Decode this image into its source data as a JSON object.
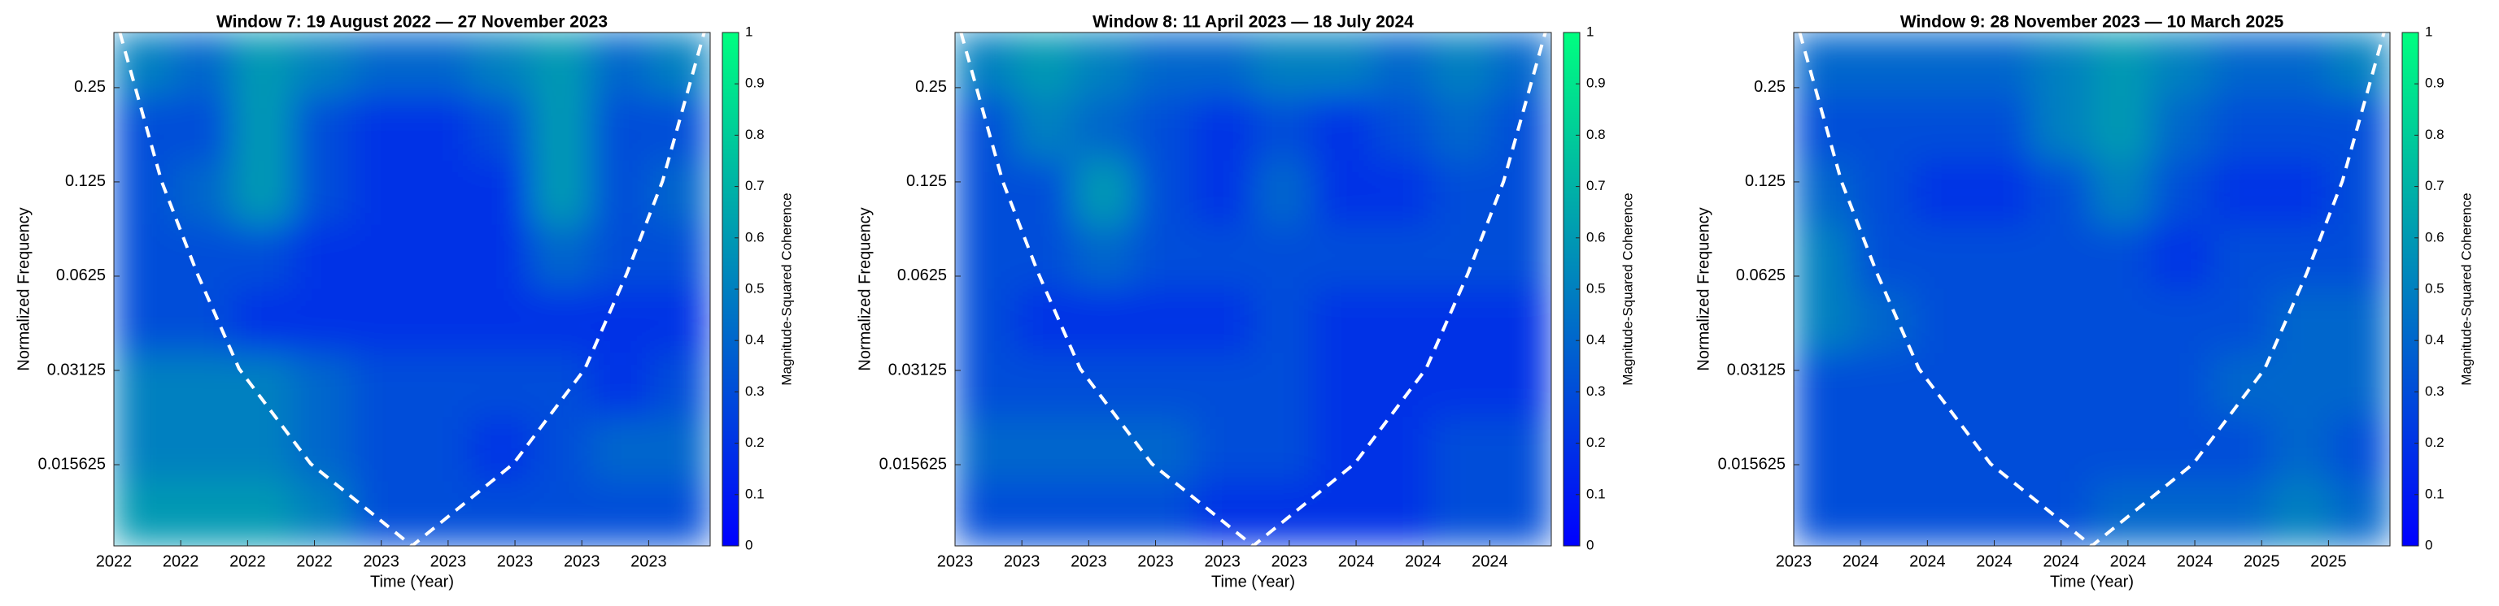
{
  "chart_data": [
    {
      "type": "heatmap",
      "title": "Window 7: 19 August 2022 — 27 November 2023",
      "xlabel": "Time (Year)",
      "ylabel": "Normalized Frequency",
      "ylog2": true,
      "ylim": [
        0.0086,
        0.375
      ],
      "yticks": [
        0.015625,
        0.03125,
        0.0625,
        0.125,
        0.25
      ],
      "xlim": [
        0,
        446
      ],
      "xticks": [
        {
          "value": 0,
          "label": "2022"
        },
        {
          "value": 50,
          "label": "2022"
        },
        {
          "value": 100,
          "label": "2022"
        },
        {
          "value": 150,
          "label": "2022"
        },
        {
          "value": 200,
          "label": "2023"
        },
        {
          "value": 250,
          "label": "2023"
        },
        {
          "value": 300,
          "label": "2023"
        },
        {
          "value": 350,
          "label": "2023"
        },
        {
          "value": 400,
          "label": "2023"
        }
      ],
      "colorbar_label": "Magnitude-Squared Coherence",
      "clim": [
        0,
        1
      ],
      "colorbar_ticks": [
        0,
        0.1,
        0.2,
        0.3,
        0.4,
        0.5,
        0.6,
        0.7,
        0.8,
        0.9,
        1
      ],
      "colormap": [
        "#0000ff",
        "#00ff80"
      ],
      "z": [
        [
          0.5,
          0.4,
          0.6,
          0.5,
          0.4,
          0.4,
          0.5,
          0.6,
          0.4,
          0.5
        ],
        [
          0.3,
          0.3,
          0.6,
          0.3,
          0.2,
          0.2,
          0.3,
          0.6,
          0.3,
          0.3
        ],
        [
          0.3,
          0.4,
          0.6,
          0.3,
          0.2,
          0.2,
          0.2,
          0.6,
          0.3,
          0.4
        ],
        [
          0.3,
          0.3,
          0.3,
          0.2,
          0.2,
          0.2,
          0.2,
          0.4,
          0.3,
          0.3
        ],
        [
          0.3,
          0.3,
          0.2,
          0.2,
          0.2,
          0.2,
          0.2,
          0.2,
          0.2,
          0.2
        ],
        [
          0.5,
          0.5,
          0.5,
          0.4,
          0.3,
          0.3,
          0.3,
          0.3,
          0.2,
          0.3
        ],
        [
          0.5,
          0.5,
          0.5,
          0.4,
          0.3,
          0.3,
          0.2,
          0.3,
          0.4,
          0.4
        ],
        [
          0.6,
          0.6,
          0.6,
          0.5,
          0.3,
          0.3,
          0.3,
          0.3,
          0.3,
          0.3
        ]
      ]
    },
    {
      "type": "heatmap",
      "title": "Window 8: 11 April 2023 — 18 July 2024",
      "xlabel": "Time (Year)",
      "ylabel": "Normalized Frequency",
      "ylog2": true,
      "ylim": [
        0.0086,
        0.375
      ],
      "yticks": [
        0.015625,
        0.03125,
        0.0625,
        0.125,
        0.25
      ],
      "xlim": [
        0,
        446
      ],
      "xticks": [
        {
          "value": 0,
          "label": "2023"
        },
        {
          "value": 50,
          "label": "2023"
        },
        {
          "value": 100,
          "label": "2023"
        },
        {
          "value": 150,
          "label": "2023"
        },
        {
          "value": 200,
          "label": "2023"
        },
        {
          "value": 250,
          "label": "2023"
        },
        {
          "value": 300,
          "label": "2024"
        },
        {
          "value": 350,
          "label": "2024"
        },
        {
          "value": 400,
          "label": "2024"
        }
      ],
      "colorbar_label": "Magnitude-Squared Coherence",
      "clim": [
        0,
        1
      ],
      "colorbar_ticks": [
        0,
        0.1,
        0.2,
        0.3,
        0.4,
        0.5,
        0.6,
        0.7,
        0.8,
        0.9,
        1
      ],
      "colormap": [
        "#0000ff",
        "#00ff80"
      ],
      "z": [
        [
          0.5,
          0.6,
          0.5,
          0.4,
          0.4,
          0.5,
          0.5,
          0.4,
          0.5,
          0.4
        ],
        [
          0.3,
          0.5,
          0.4,
          0.3,
          0.2,
          0.3,
          0.2,
          0.3,
          0.4,
          0.3
        ],
        [
          0.3,
          0.3,
          0.6,
          0.3,
          0.2,
          0.4,
          0.2,
          0.2,
          0.3,
          0.3
        ],
        [
          0.3,
          0.3,
          0.4,
          0.3,
          0.3,
          0.3,
          0.3,
          0.3,
          0.3,
          0.3
        ],
        [
          0.3,
          0.2,
          0.2,
          0.2,
          0.2,
          0.3,
          0.2,
          0.2,
          0.2,
          0.2
        ],
        [
          0.3,
          0.3,
          0.3,
          0.3,
          0.3,
          0.3,
          0.2,
          0.2,
          0.2,
          0.2
        ],
        [
          0.4,
          0.4,
          0.4,
          0.4,
          0.3,
          0.3,
          0.2,
          0.2,
          0.3,
          0.3
        ],
        [
          0.3,
          0.3,
          0.3,
          0.3,
          0.2,
          0.2,
          0.2,
          0.2,
          0.3,
          0.3
        ]
      ]
    },
    {
      "type": "heatmap",
      "title": "Window 9: 28 November 2023 — 10 March 2025",
      "xlabel": "Time (Year)",
      "ylabel": "Normalized Frequency",
      "ylog2": true,
      "ylim": [
        0.0086,
        0.375
      ],
      "yticks": [
        0.015625,
        0.03125,
        0.0625,
        0.125,
        0.25
      ],
      "xlim": [
        0,
        446
      ],
      "xticks": [
        {
          "value": 0,
          "label": "2023"
        },
        {
          "value": 50,
          "label": "2024"
        },
        {
          "value": 100,
          "label": "2024"
        },
        {
          "value": 150,
          "label": "2024"
        },
        {
          "value": 200,
          "label": "2024"
        },
        {
          "value": 250,
          "label": "2024"
        },
        {
          "value": 300,
          "label": "2024"
        },
        {
          "value": 350,
          "label": "2025"
        },
        {
          "value": 400,
          "label": "2025"
        }
      ],
      "colorbar_label": "Magnitude-Squared Coherence",
      "clim": [
        0,
        1
      ],
      "colorbar_ticks": [
        0,
        0.1,
        0.2,
        0.3,
        0.4,
        0.5,
        0.6,
        0.7,
        0.8,
        0.9,
        1
      ],
      "colormap": [
        "#0000ff",
        "#00ff80"
      ],
      "z": [
        [
          0.4,
          0.4,
          0.4,
          0.4,
          0.5,
          0.6,
          0.5,
          0.4,
          0.4,
          0.5
        ],
        [
          0.3,
          0.3,
          0.3,
          0.3,
          0.5,
          0.6,
          0.4,
          0.3,
          0.3,
          0.3
        ],
        [
          0.4,
          0.3,
          0.2,
          0.2,
          0.3,
          0.5,
          0.3,
          0.2,
          0.2,
          0.3
        ],
        [
          0.5,
          0.3,
          0.3,
          0.3,
          0.3,
          0.3,
          0.2,
          0.3,
          0.3,
          0.3
        ],
        [
          0.5,
          0.4,
          0.3,
          0.3,
          0.3,
          0.3,
          0.3,
          0.3,
          0.4,
          0.4
        ],
        [
          0.3,
          0.3,
          0.3,
          0.3,
          0.3,
          0.3,
          0.3,
          0.4,
          0.4,
          0.4
        ],
        [
          0.3,
          0.3,
          0.3,
          0.3,
          0.3,
          0.3,
          0.3,
          0.3,
          0.4,
          0.3
        ],
        [
          0.3,
          0.3,
          0.3,
          0.3,
          0.3,
          0.4,
          0.4,
          0.4,
          0.5,
          0.4
        ]
      ]
    }
  ]
}
